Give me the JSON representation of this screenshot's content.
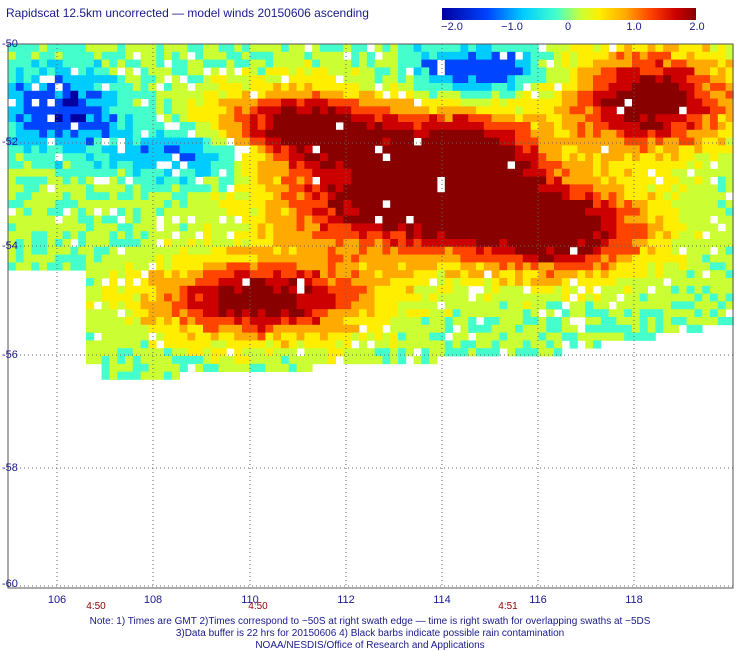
{
  "title": "Rapidscat 12.5km uncorrected — model winds 20150606 ascending",
  "colorbar": {
    "ticks": [
      "−2.0",
      "−1.0",
      "0",
      "1.0",
      "2.0"
    ],
    "colors": [
      "#0000a0",
      "#0044ff",
      "#00ccff",
      "#44ffcc",
      "#ccff33",
      "#ffee00",
      "#ffaa00",
      "#ff4400",
      "#cc0000",
      "#880000"
    ]
  },
  "axes": {
    "lat_labels": [
      "-50",
      "-52",
      "-54",
      "-56",
      "-58",
      "-60"
    ],
    "lon_labels": [
      "106",
      "108",
      "110",
      "112",
      "114",
      "116",
      "118"
    ],
    "lat_range": [
      -60,
      -50
    ],
    "lon_range": [
      105,
      120
    ]
  },
  "time_labels": [
    {
      "text": "4:50",
      "lon": 106.7
    },
    {
      "text": "4:50",
      "lon": 110.1
    },
    {
      "text": "4:51",
      "lon": 115.3
    }
  ],
  "notes": [
    "Note: 1) Times are GMT 2)Times correspond to −50S at right swath edge — time is right swath for overlapping swaths at −5DS",
    "3)Data buffer is 22 hrs for 20150606 4) Black barbs indicate possible rain contamination",
    "NOAA/NESDIS/Office of Research and Applications"
  ]
}
